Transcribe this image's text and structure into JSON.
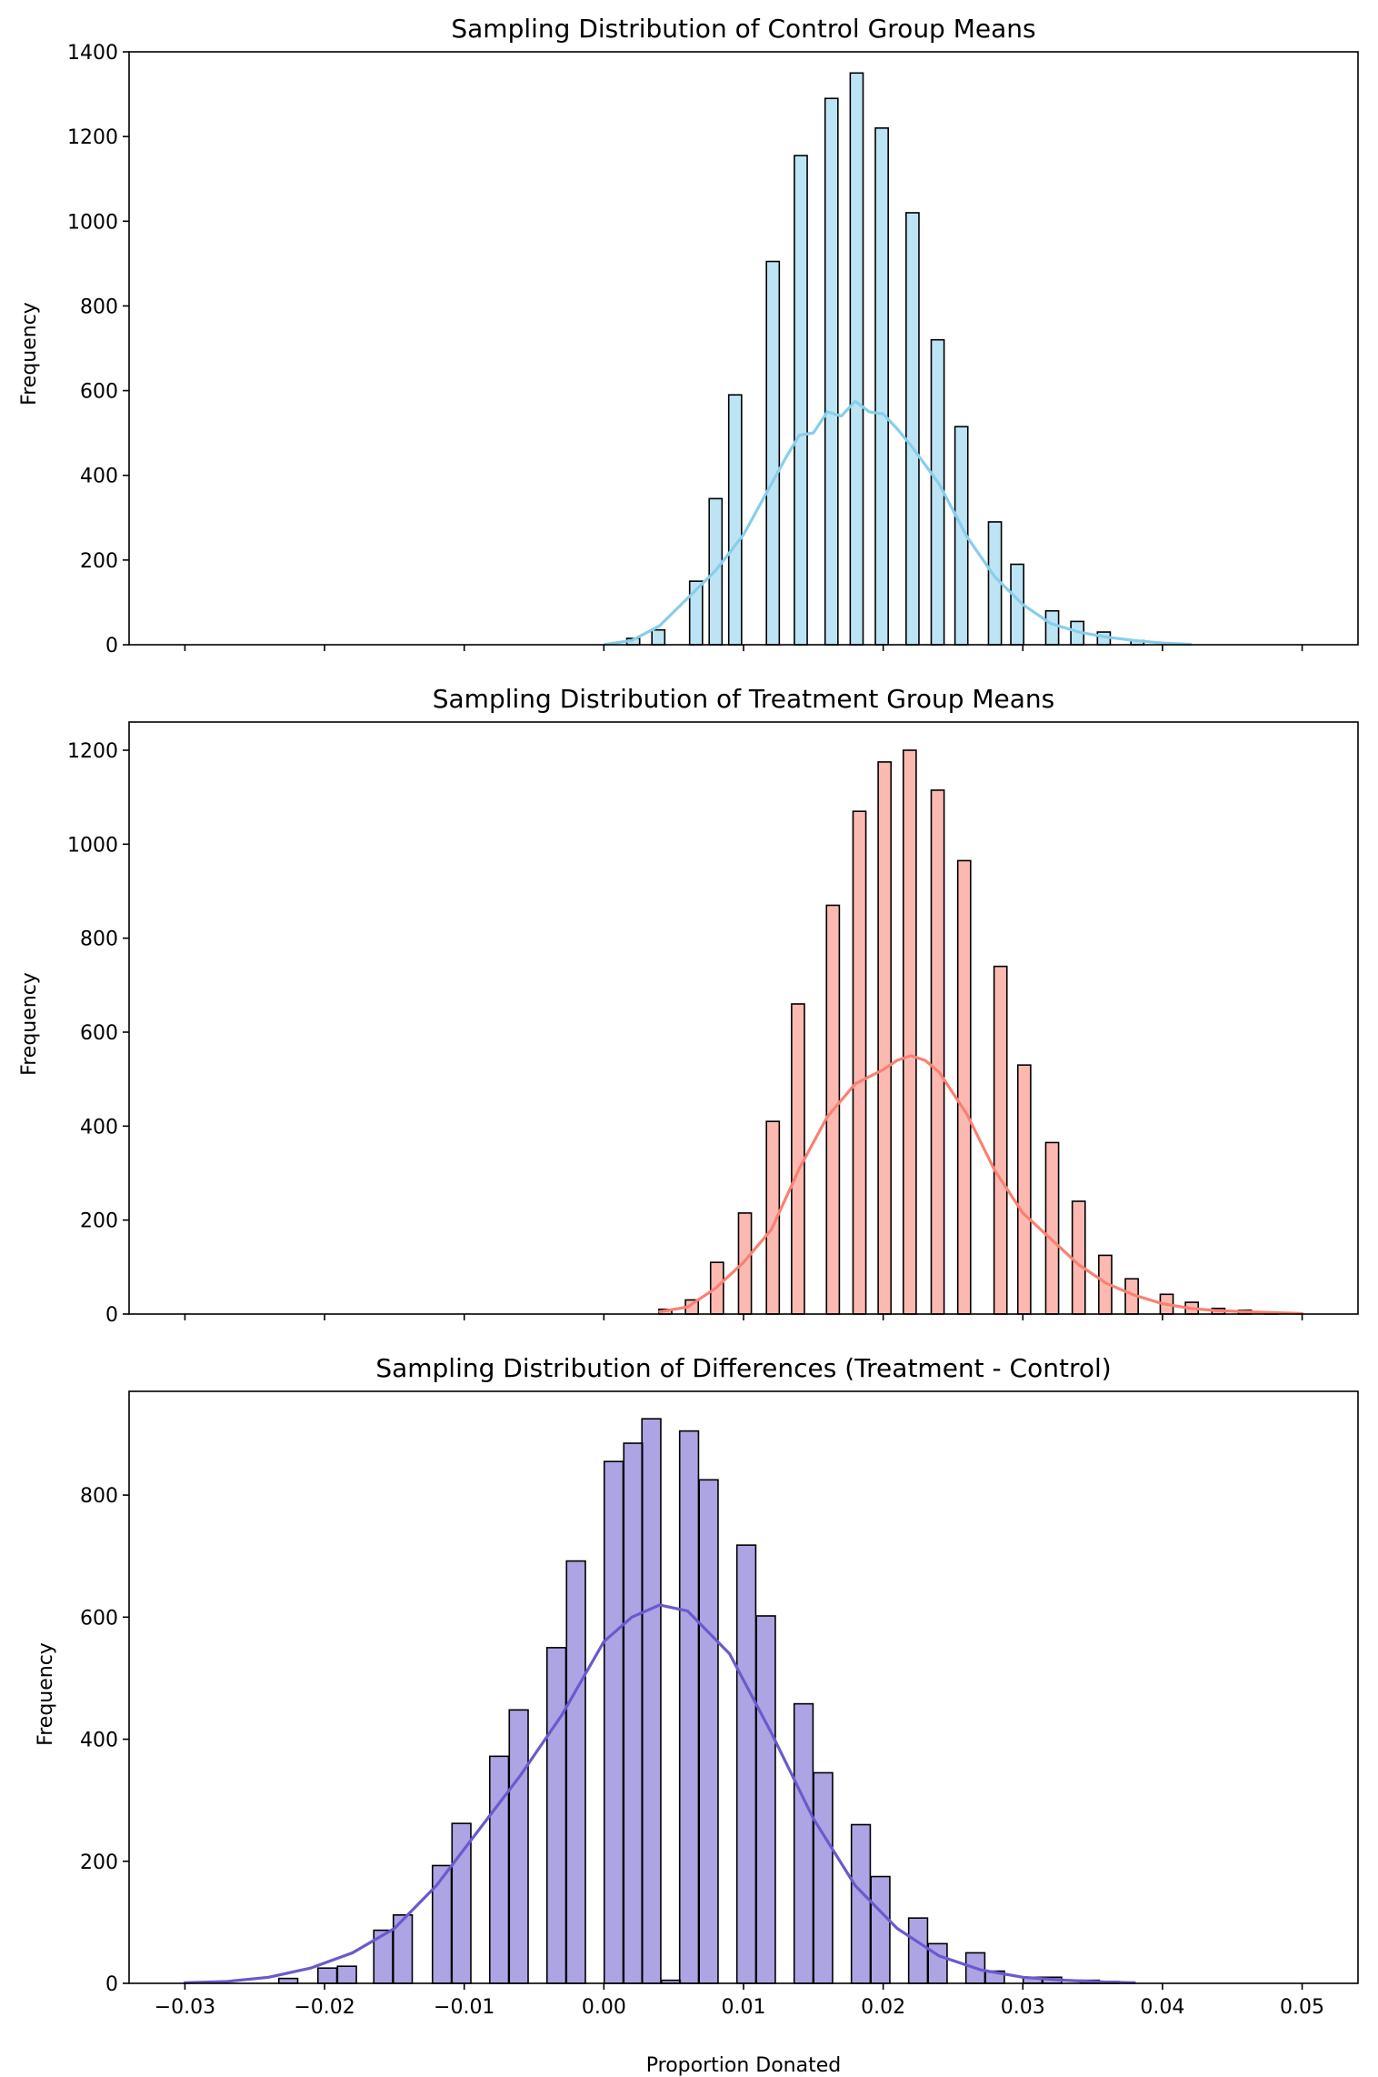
{
  "figure": {
    "shared_xlabel": "Proportion Donated",
    "x_ticks": [
      -0.03,
      -0.02,
      -0.01,
      0.0,
      0.01,
      0.02,
      0.03,
      0.04,
      0.05
    ],
    "x_tick_labels": [
      "−0.03",
      "−0.02",
      "−0.01",
      "0.00",
      "0.01",
      "0.02",
      "0.03",
      "0.04",
      "0.05"
    ],
    "xlim": [
      -0.034,
      0.054
    ]
  },
  "chart_data": [
    {
      "type": "bar",
      "subtype": "histogram-with-kde",
      "title": "Sampling Distribution of Control Group Means",
      "ylabel": "Frequency",
      "xlabel": "",
      "ylim": [
        0,
        1400
      ],
      "y_ticks": [
        0,
        200,
        400,
        600,
        800,
        1000,
        1200,
        1400
      ],
      "bar_color": "#87CEEB",
      "line_color": "#87CEEB",
      "bin_width": 0.00092,
      "bins": [
        {
          "x": 0.0021,
          "y": 15
        },
        {
          "x": 0.0039,
          "y": 35
        },
        {
          "x": 0.0066,
          "y": 150
        },
        {
          "x": 0.008,
          "y": 345
        },
        {
          "x": 0.0094,
          "y": 590
        },
        {
          "x": 0.0121,
          "y": 905
        },
        {
          "x": 0.0141,
          "y": 1155
        },
        {
          "x": 0.0163,
          "y": 1290
        },
        {
          "x": 0.0181,
          "y": 1350
        },
        {
          "x": 0.0199,
          "y": 1220
        },
        {
          "x": 0.0221,
          "y": 1020
        },
        {
          "x": 0.0239,
          "y": 720
        },
        {
          "x": 0.0256,
          "y": 515
        },
        {
          "x": 0.028,
          "y": 290
        },
        {
          "x": 0.0296,
          "y": 190
        },
        {
          "x": 0.0321,
          "y": 80
        },
        {
          "x": 0.0339,
          "y": 55
        },
        {
          "x": 0.0358,
          "y": 30
        },
        {
          "x": 0.0382,
          "y": 10
        }
      ],
      "kde": {
        "x": [
          0.0001,
          0.002,
          0.004,
          0.006,
          0.008,
          0.01,
          0.012,
          0.013,
          0.014,
          0.015,
          0.016,
          0.017,
          0.018,
          0.019,
          0.02,
          0.021,
          0.022,
          0.024,
          0.026,
          0.028,
          0.03,
          0.032,
          0.034,
          0.036,
          0.038,
          0.04,
          0.042
        ],
        "y": [
          1,
          10,
          45,
          110,
          175,
          260,
          380,
          440,
          495,
          500,
          550,
          540,
          575,
          550,
          545,
          510,
          470,
          380,
          255,
          160,
          95,
          50,
          30,
          18,
          10,
          4,
          1
        ]
      }
    },
    {
      "type": "bar",
      "subtype": "histogram-with-kde",
      "title": "Sampling Distribution of Treatment Group Means",
      "ylabel": "Frequency",
      "xlabel": "",
      "ylim": [
        0,
        1260
      ],
      "y_ticks": [
        0,
        200,
        400,
        600,
        800,
        1000,
        1200
      ],
      "bar_color": "#FA8072",
      "line_color": "#FA8072",
      "bin_width": 0.00092,
      "bins": [
        {
          "x": 0.0044,
          "y": 10
        },
        {
          "x": 0.0063,
          "y": 30
        },
        {
          "x": 0.0081,
          "y": 110
        },
        {
          "x": 0.0101,
          "y": 215
        },
        {
          "x": 0.0121,
          "y": 410
        },
        {
          "x": 0.0139,
          "y": 660
        },
        {
          "x": 0.0164,
          "y": 870
        },
        {
          "x": 0.0183,
          "y": 1070
        },
        {
          "x": 0.0201,
          "y": 1175
        },
        {
          "x": 0.0219,
          "y": 1200
        },
        {
          "x": 0.0239,
          "y": 1115
        },
        {
          "x": 0.0258,
          "y": 965
        },
        {
          "x": 0.0284,
          "y": 740
        },
        {
          "x": 0.0301,
          "y": 530
        },
        {
          "x": 0.0321,
          "y": 365
        },
        {
          "x": 0.034,
          "y": 240
        },
        {
          "x": 0.0359,
          "y": 125
        },
        {
          "x": 0.0378,
          "y": 75
        },
        {
          "x": 0.0403,
          "y": 42
        },
        {
          "x": 0.0421,
          "y": 25
        },
        {
          "x": 0.044,
          "y": 12
        },
        {
          "x": 0.0459,
          "y": 8
        },
        {
          "x": 0.0478,
          "y": 4
        }
      ],
      "kde": {
        "x": [
          0.004,
          0.006,
          0.008,
          0.01,
          0.012,
          0.014,
          0.016,
          0.018,
          0.02,
          0.021,
          0.022,
          0.023,
          0.024,
          0.026,
          0.028,
          0.03,
          0.032,
          0.034,
          0.036,
          0.038,
          0.04,
          0.042,
          0.044,
          0.046,
          0.048,
          0.05
        ],
        "y": [
          5,
          15,
          55,
          110,
          180,
          310,
          420,
          490,
          520,
          540,
          550,
          540,
          515,
          425,
          305,
          215,
          160,
          105,
          65,
          40,
          22,
          12,
          7,
          5,
          3,
          1
        ]
      }
    },
    {
      "type": "bar",
      "subtype": "histogram-with-kde",
      "title": "Sampling Distribution of Differences (Treatment - Control)",
      "ylabel": "Frequency",
      "xlabel": "Proportion Donated",
      "ylim": [
        0,
        970
      ],
      "y_ticks": [
        0,
        200,
        400,
        600,
        800
      ],
      "bar_color": "#6A5ACD",
      "line_color": "#6A5ACD",
      "bin_width": 0.00135,
      "bins": [
        {
          "x": -0.0226,
          "y": 8
        },
        {
          "x": -0.0198,
          "y": 25
        },
        {
          "x": -0.0184,
          "y": 28
        },
        {
          "x": -0.0158,
          "y": 87
        },
        {
          "x": -0.0144,
          "y": 112
        },
        {
          "x": -0.0116,
          "y": 193
        },
        {
          "x": -0.0102,
          "y": 262
        },
        {
          "x": -0.0075,
          "y": 372
        },
        {
          "x": -0.0061,
          "y": 448
        },
        {
          "x": -0.0034,
          "y": 550
        },
        {
          "x": -0.002,
          "y": 692
        },
        {
          "x": 0.0007,
          "y": 855
        },
        {
          "x": 0.0021,
          "y": 885
        },
        {
          "x": 0.0034,
          "y": 925
        },
        {
          "x": 0.0048,
          "y": 5
        },
        {
          "x": 0.0061,
          "y": 905
        },
        {
          "x": 0.0075,
          "y": 825
        },
        {
          "x": 0.0102,
          "y": 718
        },
        {
          "x": 0.0116,
          "y": 602
        },
        {
          "x": 0.0143,
          "y": 458
        },
        {
          "x": 0.0157,
          "y": 345
        },
        {
          "x": 0.0184,
          "y": 260
        },
        {
          "x": 0.0198,
          "y": 175
        },
        {
          "x": 0.0225,
          "y": 107
        },
        {
          "x": 0.0239,
          "y": 65
        },
        {
          "x": 0.0266,
          "y": 50
        },
        {
          "x": 0.028,
          "y": 20
        },
        {
          "x": 0.0307,
          "y": 10
        },
        {
          "x": 0.0321,
          "y": 10
        },
        {
          "x": 0.0348,
          "y": 5
        },
        {
          "x": 0.0362,
          "y": 3
        }
      ],
      "kde": {
        "x": [
          -0.03,
          -0.027,
          -0.024,
          -0.021,
          -0.018,
          -0.015,
          -0.012,
          -0.009,
          -0.006,
          -0.003,
          0.0,
          0.002,
          0.004,
          0.006,
          0.009,
          0.012,
          0.015,
          0.018,
          0.021,
          0.024,
          0.027,
          0.03,
          0.033,
          0.036,
          0.038
        ],
        "y": [
          1,
          3,
          10,
          25,
          50,
          90,
          160,
          250,
          340,
          440,
          560,
          600,
          620,
          610,
          540,
          410,
          270,
          160,
          90,
          45,
          22,
          10,
          5,
          2,
          1
        ]
      }
    }
  ]
}
